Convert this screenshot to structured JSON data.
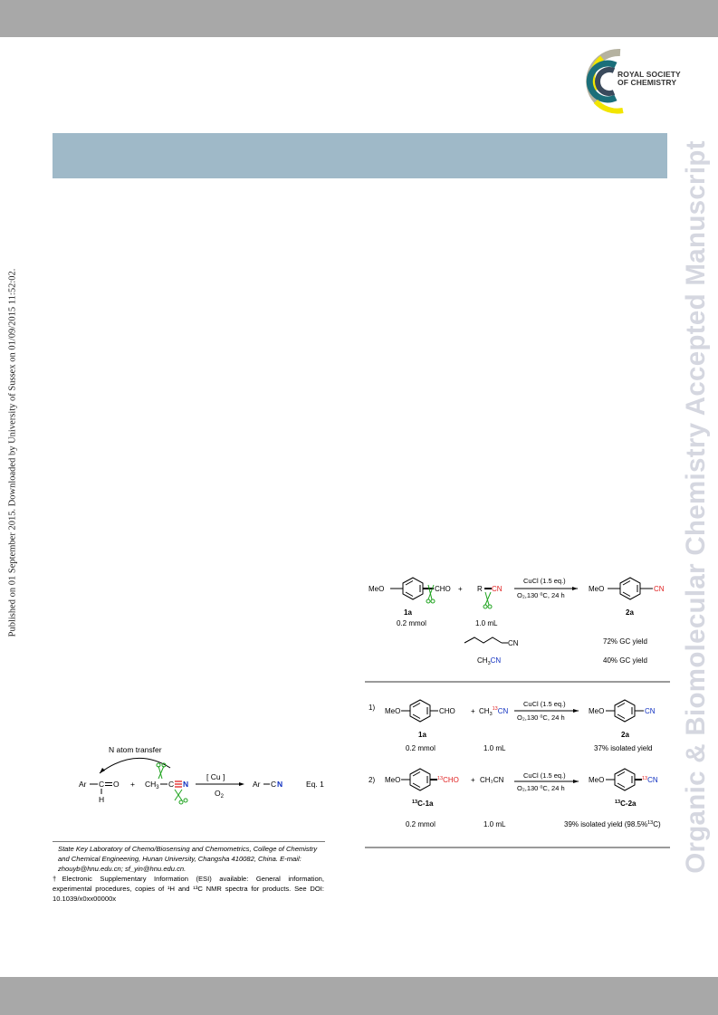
{
  "header": {
    "logo": {
      "line1": "ROYAL SOCIETY",
      "line2": "OF CHEMISTRY",
      "colors": [
        "#8d8a6e",
        "#f2e500",
        "#1b6f7a",
        "#3a4a5c",
        "#b5b2a0"
      ]
    }
  },
  "sidebar": {
    "journal_title": "Organic & Biomolecular Chemistry Accepted Manuscript",
    "published_note": "Published on 01 September 2015. Downloaded by University of Sussex on 01/09/2015 11:52:02."
  },
  "eq1": {
    "annotation": "N atom transfer",
    "reactant1_left": "Ar",
    "reactant1_carbon": "C",
    "reactant1_o": "O",
    "reactant1_h": "H",
    "plus": "+",
    "reactant2_ch3": "CH",
    "reactant2_sub": "3",
    "reactant2_c": "C",
    "reactant2_n": "N",
    "catalyst": "[ Cu ]",
    "oxidant": "O",
    "oxidant_sub": "2",
    "product_ar": "Ar",
    "product_c": "C",
    "product_n": "N",
    "label": "Eq. 1"
  },
  "scheme1": {
    "meo": "MeO",
    "cho": "CHO",
    "plus": "+",
    "r": "R",
    "cn": "CN",
    "conditions_top": "CuCl (1.5 eq.)",
    "conditions_bottom": "O₂,130 ⁰C, 24 h",
    "product_meo": "MeO",
    "product_cn": "CN",
    "label_1a": "1a",
    "amount_1a": "0.2 mmol",
    "amount_nitrile": "1.0 mL",
    "label_2a": "2a",
    "row1_cn": "CN",
    "row1_yield": "72% GC yield",
    "row2_ch3": "CH",
    "row2_sub": "3",
    "row2_cn": "CN",
    "row2_yield": "40% GC yield"
  },
  "scheme2": {
    "entry1": {
      "number": "1)",
      "meo": "MeO",
      "cho": "CHO",
      "plus": "+",
      "reagent_ch3": "CH",
      "reagent_sub": "3",
      "reagent_sup": "13",
      "reagent_cn": "CN",
      "conditions_top": "CuCl (1.5 eq.)",
      "conditions_bottom": "O₂,130 ⁰C, 24 h",
      "product_meo": "MeO",
      "product_cn": "CN",
      "label_sm": "1a",
      "amount_sm": "0.2 mmol",
      "amount_reagent": "1.0 mL",
      "label_product": "2a",
      "yield": "37% isolated yield"
    },
    "entry2": {
      "number": "2)",
      "meo": "MeO",
      "cho_sup": "13",
      "cho": "CHO",
      "plus": "+",
      "reagent": "CH₃CN",
      "conditions_top": "CuCl (1.5 eq.)",
      "conditions_bottom": "O₂,130 ⁰C, 24 h",
      "product_meo": "MeO",
      "product_sup": "13",
      "product_cn": "CN",
      "label_sm_sup": "13",
      "label_sm": "C-1a",
      "amount_sm": "0.2 mmol",
      "amount_reagent": "1.0 mL",
      "label_product_sup": "13",
      "label_product": "C-2a",
      "yield": "39% isolated yield (98.5%",
      "yield_sup": "13",
      "yield_end": "C)"
    }
  },
  "footnotes": {
    "affiliation": "State Key Laboratory of Chemo/Biosensing and Chemometrics, College of Chemistry and Chemical Engineering, Hunan University, Changsha 410082, China. E-mail: zhouyb@hnu.edu.cn; sf_yin@hnu.edu.cn.",
    "esi": "†Electronic Supplementary Information (ESI) available: General information, experimental procedures, copies of ¹H and ¹³C NMR spectra for products. See DOI: 10.1039/x0xx00000x"
  }
}
